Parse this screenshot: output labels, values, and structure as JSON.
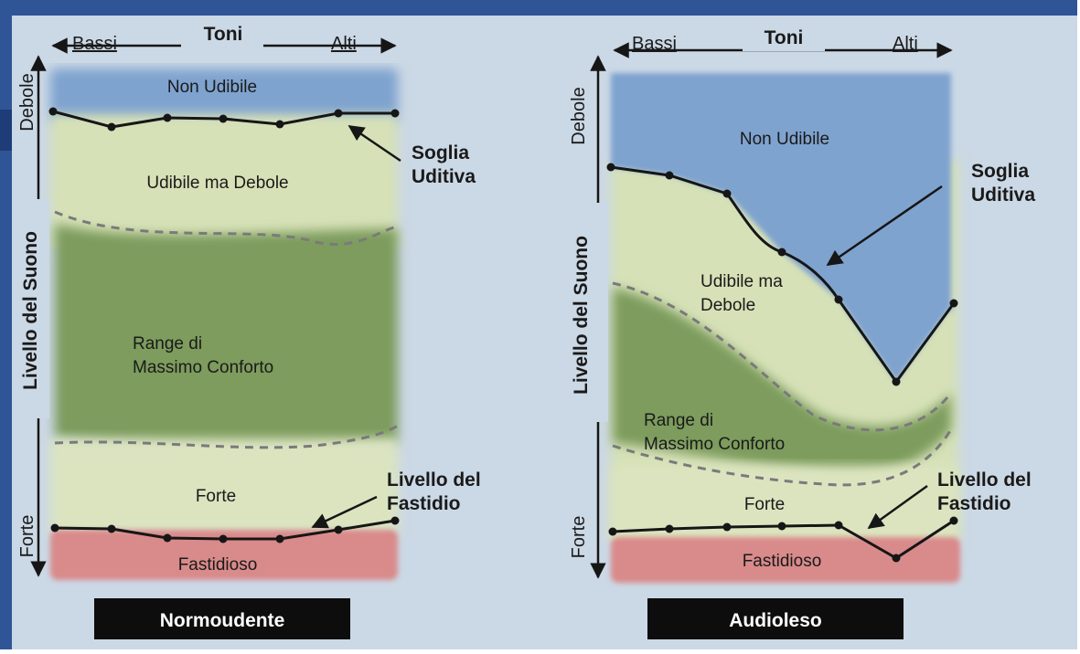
{
  "colors": {
    "background": "#cbd8e5",
    "non_udibile": "#7fa3cf",
    "udibile_debole": "#d6e1b7",
    "comfort": "#7d9c5d",
    "forte": "#dbe4bf",
    "fastidioso": "#d98a8a",
    "curve": "#161616",
    "frame": "#2f5597",
    "label_box": "#0d0d0d"
  },
  "diagram": {
    "left": {
      "bassi": "Bassi",
      "toni": "Toni",
      "alti": "Alti",
      "debole": "Debole",
      "livello": "Livello del Suono",
      "forte_axis": "Forte",
      "non_udibile": "Non Udibile",
      "udibile_debole": "Udibile ma Debole",
      "range_line1": "Range di",
      "range_line2": "Massimo Conforto",
      "forte": "Forte",
      "fastidioso": "Fastidioso",
      "soglia_line1": "Soglia",
      "soglia_line2": "Uditiva",
      "fastidio_line1": "Livello del",
      "fastidio_line2": "Fastidio",
      "caption": "Normoudente"
    },
    "right": {
      "bassi": "Bassi",
      "toni": "Toni",
      "alti": "Alti",
      "debole": "Debole",
      "livello": "Livello del Suono",
      "forte_axis": "Forte",
      "non_udibile": "Non Udibile",
      "udibile_line1": "Udibile ma",
      "udibile_line2": "Debole",
      "range_line1": "Range di",
      "range_line2": "Massimo Conforto",
      "forte": "Forte",
      "fastidioso": "Fastidioso",
      "soglia_line1": "Soglia",
      "soglia_line2": "Uditiva",
      "fastidio_line1": "Livello del",
      "fastidio_line2": "Fastidio",
      "caption": "Audioleso"
    }
  }
}
